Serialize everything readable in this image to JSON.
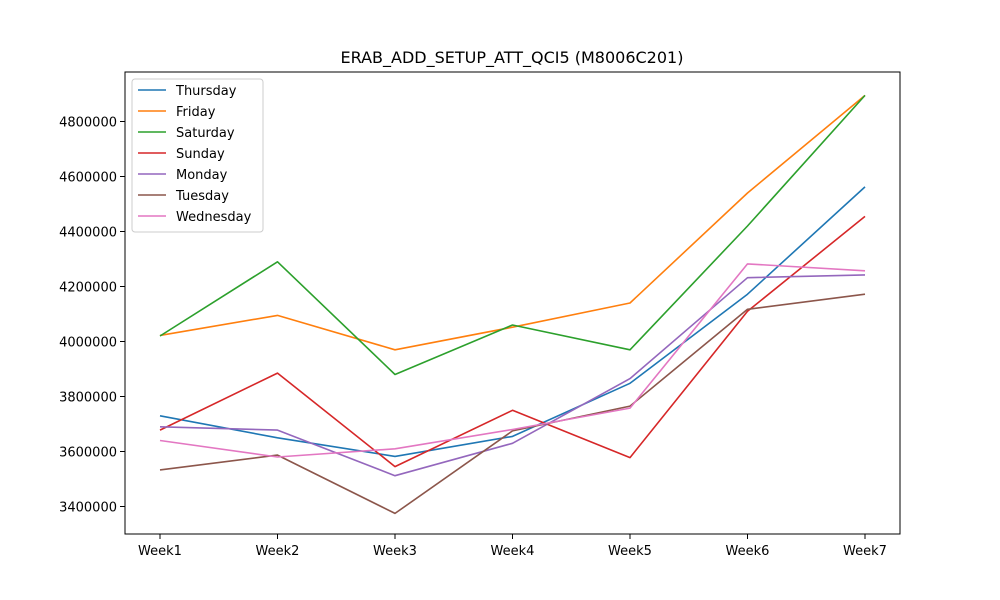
{
  "chart_data": {
    "type": "line",
    "title": "ERAB_ADD_SETUP_ATT_QCI5 (M8006C201)",
    "xlabel": "",
    "ylabel": "",
    "categories": [
      "Week1",
      "Week2",
      "Week3",
      "Week4",
      "Week5",
      "Week6",
      "Week7"
    ],
    "ylim": [
      3300000,
      4980000
    ],
    "yticks": [
      3400000,
      3600000,
      3800000,
      4000000,
      4200000,
      4400000,
      4600000,
      4800000
    ],
    "ytick_labels": [
      "3400000",
      "3600000",
      "3800000",
      "4000000",
      "4200000",
      "4400000",
      "4600000",
      "4800000"
    ],
    "grid": false,
    "legend_position": "upper-left",
    "series": [
      {
        "name": "Thursday",
        "color": "#1f77b4",
        "values": [
          3730000,
          3650000,
          3582000,
          3655000,
          3848000,
          4172000,
          4562000
        ]
      },
      {
        "name": "Friday",
        "color": "#ff7f0e",
        "values": [
          4022000,
          4095000,
          3970000,
          4052000,
          4140000,
          4540000,
          4895000
        ]
      },
      {
        "name": "Saturday",
        "color": "#2ca02c",
        "values": [
          4020000,
          4290000,
          3880000,
          4060000,
          3970000,
          4420000,
          4895000
        ]
      },
      {
        "name": "Sunday",
        "color": "#d62728",
        "values": [
          3678000,
          3885000,
          3545000,
          3750000,
          3578000,
          4110000,
          4455000
        ]
      },
      {
        "name": "Monday",
        "color": "#9467bd",
        "values": [
          3690000,
          3678000,
          3512000,
          3630000,
          3865000,
          4232000,
          4242000
        ]
      },
      {
        "name": "Tuesday",
        "color": "#8c564b",
        "values": [
          3533000,
          3587000,
          3375000,
          3675000,
          3765000,
          4117000,
          4172000
        ]
      },
      {
        "name": "Wednesday",
        "color": "#e377c2",
        "values": [
          3640000,
          3580000,
          3610000,
          3680000,
          3758000,
          4282000,
          4257000
        ]
      }
    ]
  }
}
